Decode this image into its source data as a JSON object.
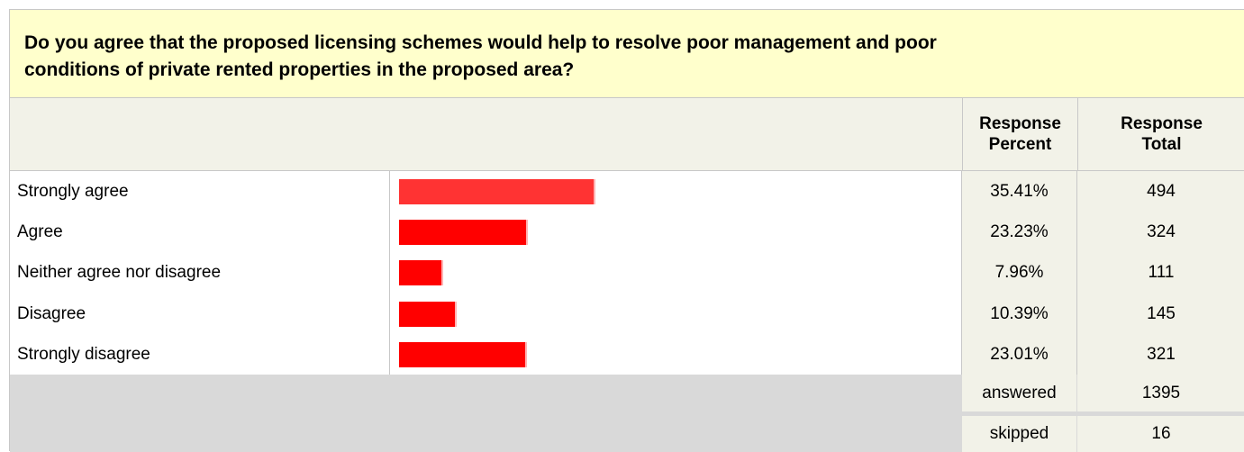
{
  "question": {
    "line1": "Do you agree that the proposed licensing schemes would help to resolve poor management and poor",
    "line2": "conditions of private rented properties in the proposed area?"
  },
  "headers": {
    "response_percent": [
      "Response",
      "Percent"
    ],
    "response_total": [
      "Response",
      "Total"
    ]
  },
  "colors": {
    "bar": "#ff0000",
    "bar_first": "#ff3333",
    "question_bg": "#ffffcc",
    "value_bg": "#f2f2e8",
    "footer_bg": "#d9d9d9"
  },
  "chart_data": {
    "type": "bar",
    "orientation": "horizontal",
    "title": "Do you agree that the proposed licensing schemes would help to resolve poor management and poor conditions of private rented properties in the proposed area?",
    "categories": [
      "Strongly agree",
      "Agree",
      "Neither agree nor disagree",
      "Disagree",
      "Strongly disagree"
    ],
    "values": [
      35.41,
      23.23,
      7.96,
      10.39,
      23.01
    ],
    "percent_labels": [
      "35.41%",
      "23.23%",
      "7.96%",
      "10.39%",
      "23.01%"
    ],
    "totals": [
      "494",
      "324",
      "111",
      "145",
      "321"
    ],
    "xlim": [
      0,
      100
    ]
  },
  "summary": {
    "answered_label": "answered",
    "answered_value": "1395",
    "skipped_label": "skipped",
    "skipped_value": "16"
  }
}
